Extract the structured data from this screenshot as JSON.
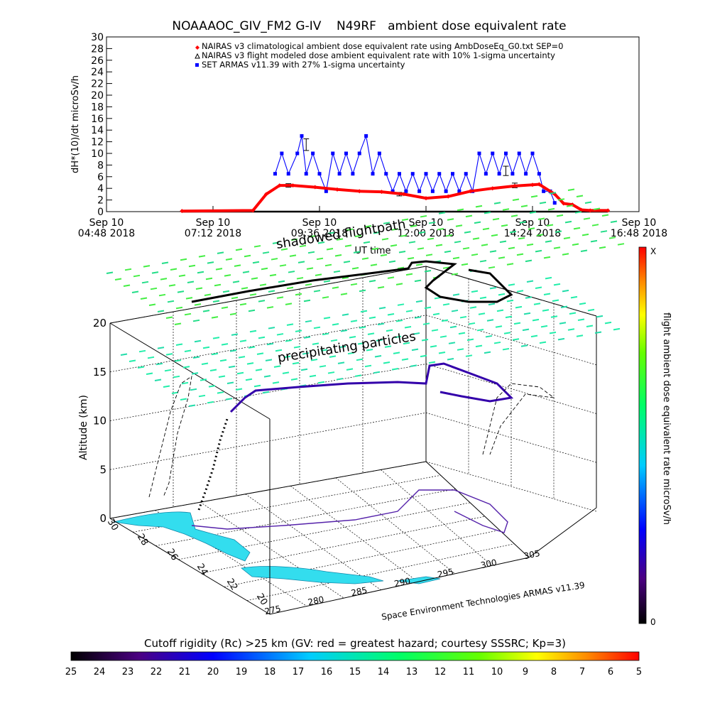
{
  "title": "NOAAAOC_GIV_FM2 G-IV    N49RF   ambient dose equivalent rate",
  "chart_data": [
    {
      "type": "line",
      "title": "NOAAAOC_GIV_FM2 G-IV    N49RF   ambient dose equivalent rate",
      "ylabel": "dH*(10)/dt microSv/h",
      "xlabel": "UT time",
      "ylim": [
        0,
        30
      ],
      "yticks": [
        "0",
        "2",
        "4",
        "6",
        "8",
        "10",
        "12",
        "14",
        "16",
        "18",
        "20",
        "22",
        "24",
        "26",
        "28",
        "30"
      ],
      "xticks": [
        {
          "top": "Sep 10",
          "bottom": "04:48 2018"
        },
        {
          "top": "Sep 10",
          "bottom": "07:12 2018"
        },
        {
          "top": "Sep 10",
          "bottom": "09:36 2018"
        },
        {
          "top": "Sep 10",
          "bottom": "12:00 2018"
        },
        {
          "top": "Sep 10",
          "bottom": "14:24 2018"
        },
        {
          "top": "Sep 10",
          "bottom": "16:48 2018"
        }
      ],
      "x_range_hours": [
        4.8,
        16.8
      ],
      "legend_position": "top",
      "legend": [
        {
          "label": "NAIRAS v3 climatological ambient dose equivalent rate using AmbDoseEq_G0.txt SEP=0",
          "color": "#ff0000",
          "marker": "diamond"
        },
        {
          "label": "NAIRAS v3 flight modeled dose ambient equivalent rate with 10% 1-sigma uncertainty",
          "color": "#000000",
          "marker": "triangle"
        },
        {
          "label": "SET ARMAS v11.39 with 27% 1-sigma uncertainty",
          "color": "#0000ff",
          "marker": "square"
        }
      ],
      "series": [
        {
          "name": "NAIRAS v3 climatological ambient dose equivalent rate using AmbDoseEq_G0.txt SEP=0",
          "color": "#ff0000",
          "x": [
            6.5,
            8.1,
            8.4,
            8.7,
            9.0,
            9.5,
            10.0,
            10.5,
            11.0,
            11.5,
            12.0,
            12.5,
            13.0,
            13.5,
            14.0,
            14.4,
            14.55,
            14.9,
            15.1,
            15.3,
            15.5,
            15.7,
            16.1
          ],
          "y": [
            0.1,
            0.2,
            3.0,
            4.5,
            4.5,
            4.2,
            3.8,
            3.5,
            3.4,
            3.0,
            2.3,
            2.6,
            3.5,
            4.0,
            4.4,
            4.6,
            4.7,
            3.0,
            1.4,
            1.2,
            0.3,
            0.2,
            0.2
          ]
        },
        {
          "name": "NAIRAS v3 flight modeled dose ambient equivalent rate with 10% 1-sigma uncertainty",
          "color": "#000000",
          "x": [
            6.5,
            16.1
          ],
          "y": [
            0.0,
            0.0
          ],
          "error_bars": [
            {
              "x": 8.9,
              "y": 4.5,
              "err": 0.3
            },
            {
              "x": 9.3,
              "y": 11.5,
              "err": 1.0
            },
            {
              "x": 11.4,
              "y": 3.0,
              "err": 0.3
            },
            {
              "x": 13.8,
              "y": 7.0,
              "err": 0.8
            },
            {
              "x": 14.0,
              "y": 4.5,
              "err": 0.4
            }
          ]
        },
        {
          "name": "SET ARMAS v11.39 with 27% 1-sigma uncertainty",
          "color": "#0000ff",
          "x": [
            8.6,
            8.75,
            8.9,
            9.1,
            9.2,
            9.3,
            9.45,
            9.6,
            9.75,
            9.9,
            10.05,
            10.2,
            10.35,
            10.5,
            10.65,
            10.8,
            10.95,
            11.1,
            11.25,
            11.4,
            11.55,
            11.7,
            11.85,
            12.0,
            12.15,
            12.3,
            12.45,
            12.6,
            12.75,
            12.9,
            13.05,
            13.2,
            13.35,
            13.5,
            13.65,
            13.8,
            13.95,
            14.1,
            14.25,
            14.4,
            14.55,
            14.65,
            14.8,
            14.9
          ],
          "y": [
            6.5,
            10,
            6.5,
            10,
            13,
            6.5,
            10,
            6.5,
            3.5,
            10,
            6.5,
            10,
            6.5,
            10,
            13,
            6.5,
            10,
            6.5,
            3.5,
            6.5,
            3.5,
            6.5,
            3.5,
            6.5,
            3.5,
            6.5,
            3.5,
            6.5,
            3.5,
            6.5,
            3.5,
            10,
            6.5,
            10,
            6.5,
            10,
            6.5,
            10,
            6.5,
            10,
            6.5,
            3.5,
            3.5,
            1.5
          ]
        }
      ]
    },
    {
      "type": "scatter",
      "subtype": "3d-flight-track",
      "zlabel": "Altitude (km)",
      "zticks": [
        "0",
        "5",
        "10",
        "15",
        "20"
      ],
      "lat_ticks": [
        "30",
        "28",
        "26",
        "24",
        "22",
        "20"
      ],
      "lon_ticks": [
        "275",
        "280",
        "285",
        "290",
        "295",
        "300",
        "305"
      ],
      "annotations": [
        "shadowed flightpath",
        "precipitating particles"
      ],
      "footer": "Space Environment Technologies ARMAS v11.39",
      "track": {
        "lon": [
          277,
          279,
          281,
          284,
          287,
          290,
          293,
          296,
          298,
          300,
          302,
          303,
          301,
          299,
          297
        ],
        "lat": [
          28.5,
          27.5,
          27.0,
          26.5,
          26.0,
          25.5,
          25.5,
          26.0,
          26.5,
          27.0,
          27.0,
          26.0,
          25.0,
          25.0,
          26.0
        ],
        "alt": [
          0,
          4,
          12,
          13,
          13,
          13,
          13,
          14,
          14,
          14,
          13,
          12,
          12,
          13,
          14
        ]
      },
      "colorbar": {
        "label": "flight ambient dose equivalent rate microSv/h",
        "top_label": "X",
        "bottom_label": "0"
      }
    }
  ],
  "bottom_colorbar": {
    "title": "Cutoff rigidity (Rc) >25 km (GV: red = greatest hazard; courtesy SSSRC; Kp=3)",
    "ticks": [
      "25",
      "24",
      "23",
      "22",
      "21",
      "20",
      "19",
      "18",
      "17",
      "16",
      "15",
      "14",
      "13",
      "12",
      "11",
      "10",
      "9",
      "8",
      "7",
      "6",
      "5"
    ]
  }
}
